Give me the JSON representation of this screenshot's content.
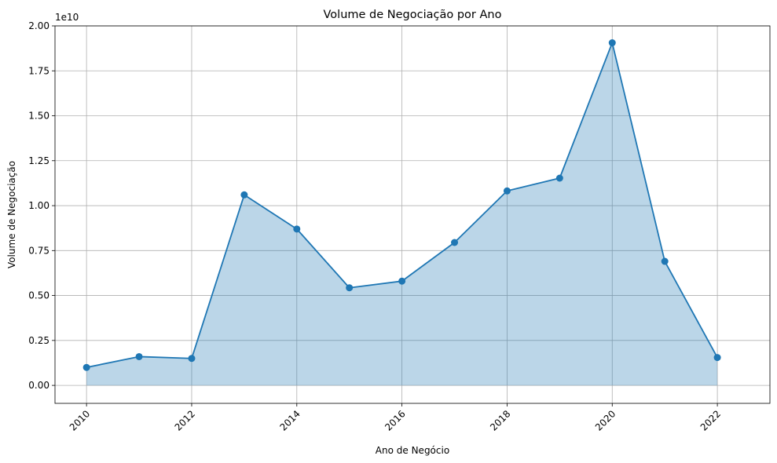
{
  "chart_data": {
    "type": "area",
    "title": "Volume de Negociação por Ano",
    "xlabel": "Ano de Negócio",
    "ylabel": "Volume de Negociação",
    "y_offset_text": "1e10",
    "x": [
      2010,
      2011,
      2012,
      2013,
      2014,
      2015,
      2016,
      2017,
      2018,
      2019,
      2020,
      2021,
      2022
    ],
    "series": [
      {
        "values": [
          1000000000.0,
          1600000000.0,
          1500000000.0,
          10600000000.0,
          8700000000.0,
          5430000000.0,
          5800000000.0,
          7950000000.0,
          10820000000.0,
          11530000000.0,
          19060000000.0,
          6900000000.0,
          1550000000.0
        ]
      }
    ],
    "xlim": [
      2009.4,
      2023.0
    ],
    "ylim": [
      -1000000000.0,
      20000000000.0
    ],
    "x_ticks": [
      2010,
      2012,
      2014,
      2016,
      2018,
      2020,
      2022
    ],
    "y_ticks": [
      0,
      2500000000.0,
      5000000000.0,
      7500000000.0,
      10000000000.0,
      12500000000.0,
      15000000000.0,
      17500000000.0,
      20000000000.0
    ],
    "y_tick_labels": [
      "0.00",
      "0.25",
      "0.50",
      "0.75",
      "1.00",
      "1.25",
      "1.50",
      "1.75",
      "2.00"
    ],
    "grid": true,
    "line_color": "#1f77b4",
    "fill_color": "#1f77b4",
    "fill_alpha": 0.3
  }
}
